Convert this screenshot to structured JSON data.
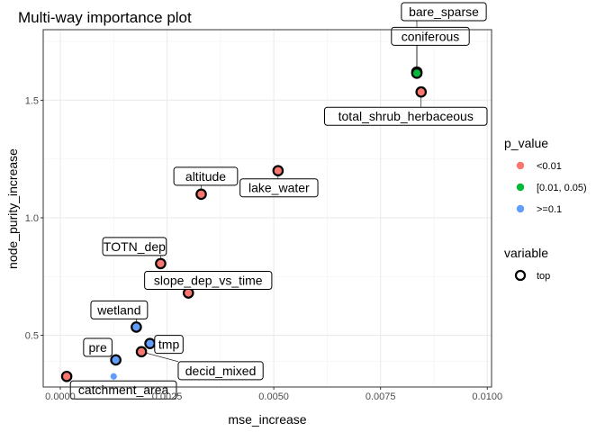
{
  "chart_data": {
    "type": "scatter",
    "title": "Multi-way importance plot",
    "xlabel": "mse_increase",
    "ylabel": "node_purity_increase",
    "xlim": [
      -0.0004,
      0.0101
    ],
    "ylim": [
      0.28,
      1.8
    ],
    "x_ticks": [
      0.0,
      0.0025,
      0.005,
      0.0075,
      0.01
    ],
    "x_tick_labels": [
      "0.0000",
      "0.0025",
      "0.0050",
      "0.0075",
      "0.0100"
    ],
    "y_ticks": [
      0.5,
      1.0,
      1.5
    ],
    "y_tick_labels": [
      "0.5",
      "1.0",
      "1.5"
    ],
    "grid": true,
    "legend_placement": "right",
    "legend": {
      "color_title": "p_value",
      "color_entries": [
        {
          "label": "<0.01",
          "color": "#F8766D"
        },
        {
          "label": "[0.01, 0.05)",
          "color": "#00BA38"
        },
        {
          "label": ">=0.1",
          "color": "#619CFF"
        }
      ],
      "shape_title": "variable",
      "shape_entries": [
        {
          "label": "top"
        }
      ]
    },
    "points": [
      {
        "name": "bare_sparse",
        "x": 0.00835,
        "y": 1.62,
        "p_value": "<0.01",
        "top": true
      },
      {
        "name": "coniferous",
        "x": 0.00835,
        "y": 1.615,
        "p_value": "[0.01, 0.05)",
        "top": true
      },
      {
        "name": "total_shrub_herbaceous",
        "x": 0.00845,
        "y": 1.535,
        "p_value": "<0.01",
        "top": true
      },
      {
        "name": "lake_water",
        "x": 0.0051,
        "y": 1.2,
        "p_value": "<0.01",
        "top": true
      },
      {
        "name": "altitude",
        "x": 0.0033,
        "y": 1.1,
        "p_value": "<0.01",
        "top": true
      },
      {
        "name": "TOTN_dep",
        "x": 0.00235,
        "y": 0.805,
        "p_value": "<0.01",
        "top": true
      },
      {
        "name": "slope_dep_vs_time",
        "x": 0.003,
        "y": 0.68,
        "p_value": "<0.01",
        "top": true
      },
      {
        "name": "wetland",
        "x": 0.00178,
        "y": 0.535,
        "p_value": ">=0.1",
        "top": true
      },
      {
        "name": "tmp",
        "x": 0.0021,
        "y": 0.465,
        "p_value": ">=0.1",
        "top": true
      },
      {
        "name": "decid_mixed",
        "x": 0.0019,
        "y": 0.43,
        "p_value": "<0.01",
        "top": true
      },
      {
        "name": "pre",
        "x": 0.0013,
        "y": 0.395,
        "p_value": ">=0.1",
        "top": true
      },
      {
        "name": "catchment_area",
        "x": 0.00015,
        "y": 0.325,
        "p_value": "<0.01",
        "top": true
      },
      {
        "name": "",
        "x": 0.00125,
        "y": 0.325,
        "p_value": ">=0.1",
        "top": false
      }
    ]
  }
}
